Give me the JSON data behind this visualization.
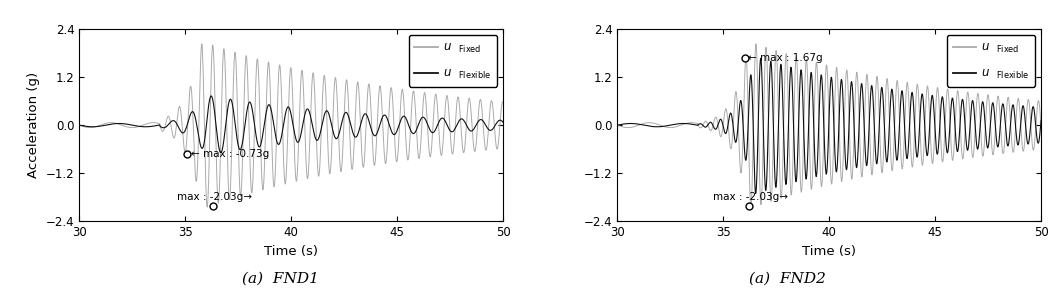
{
  "xlim": [
    30,
    50
  ],
  "ylim": [
    -2.4,
    2.4
  ],
  "yticks": [
    -2.4,
    -1.2,
    0,
    1.2,
    2.4
  ],
  "xticks": [
    30,
    35,
    40,
    45,
    50
  ],
  "xlabel": "Time (s)",
  "ylabel": "Acceleration (g)",
  "fixed_color": "#aaaaaa",
  "flexible_color": "#111111",
  "panel1_label": "(a)  FND1",
  "panel2_label": "(a)  FND2",
  "p1_fixed_marker_x": 36.3,
  "p1_fixed_marker_y": -2.03,
  "p1_flex_marker_x": 35.1,
  "p1_flex_marker_y": -0.73,
  "p2_fixed_marker_x": 36.2,
  "p2_fixed_marker_y": -2.03,
  "p2_flex_marker_x": 36.0,
  "p2_flex_marker_y": 1.67,
  "dt": 0.005,
  "t_start": 30.0,
  "t_end": 50.0
}
